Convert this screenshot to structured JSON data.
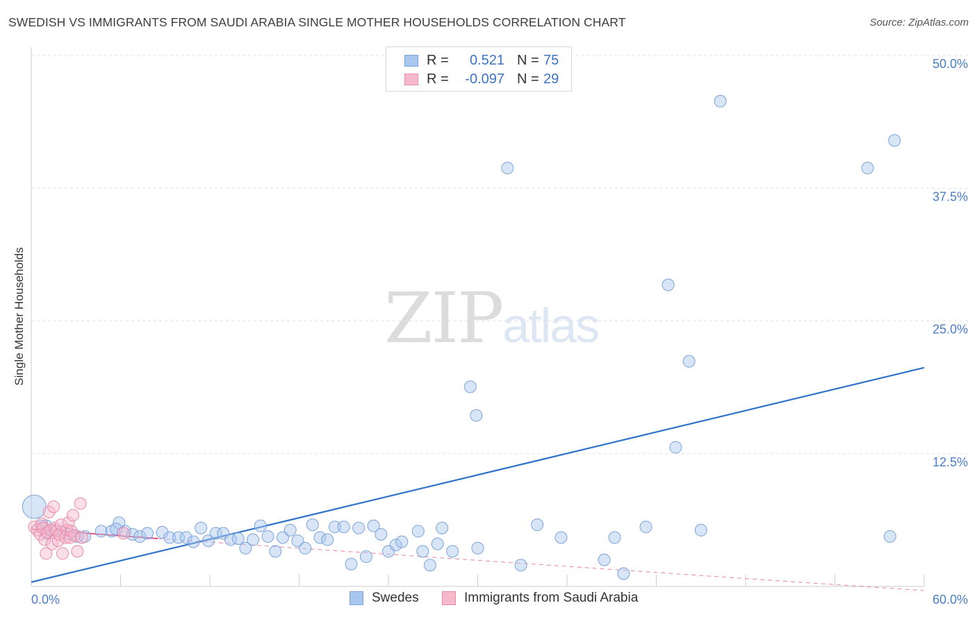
{
  "title": "SWEDISH VS IMMIGRANTS FROM SAUDI ARABIA SINGLE MOTHER HOUSEHOLDS CORRELATION CHART",
  "source": "Source: ZipAtlas.com",
  "watermark": {
    "zip": "ZIP",
    "atlas": "atlas"
  },
  "colors": {
    "blue_fill": "#a9c6ee",
    "blue_stroke": "#7aa3dc",
    "blue_line": "#2f72cc",
    "pink_fill": "#f6b9cc",
    "pink_stroke": "#ea8aa9",
    "pink_line": "#e0507e",
    "grid": "#e2e2e2",
    "axis": "#cccccc",
    "tick_text": "#4a7ec9"
  },
  "legend": {
    "rows": [
      {
        "r_label": "R =",
        "r_value": "0.521",
        "n_label": "N =",
        "n_value": "75"
      },
      {
        "r_label": "R =",
        "r_value": "-0.097",
        "n_label": "N =",
        "n_value": "29"
      }
    ]
  },
  "bottom_legend": {
    "swedes": "Swedes",
    "saudi": "Immigrants from Saudi Arabia"
  },
  "chart_data": {
    "type": "scatter",
    "title": "SWEDISH VS IMMIGRANTS FROM SAUDI ARABIA SINGLE MOTHER HOUSEHOLDS CORRELATION CHART",
    "xlabel": "",
    "ylabel": "Single Mother Households",
    "xlim": [
      0,
      60
    ],
    "ylim": [
      0,
      50
    ],
    "x_tick_labels": [
      "0.0%",
      "60.0%"
    ],
    "y_ticks": [
      12.5,
      25.0,
      37.5,
      50.0
    ],
    "y_tick_labels": [
      "12.5%",
      "25.0%",
      "37.5%",
      "50.0%"
    ],
    "grid": true,
    "series": [
      {
        "name": "Swedes",
        "color": "#a9c6ee",
        "points": [
          [
            0.2,
            7.5
          ],
          [
            0.7,
            5.7
          ],
          [
            1.0,
            5.0
          ],
          [
            1.5,
            5.3
          ],
          [
            2.0,
            5.1
          ],
          [
            2.6,
            4.9
          ],
          [
            3.1,
            4.7
          ],
          [
            3.6,
            4.7
          ],
          [
            4.7,
            5.2
          ],
          [
            5.4,
            5.2
          ],
          [
            5.9,
            6.0
          ],
          [
            6.3,
            5.2
          ],
          [
            6.8,
            4.9
          ],
          [
            7.3,
            4.7
          ],
          [
            7.8,
            5.0
          ],
          [
            8.8,
            5.1
          ],
          [
            9.3,
            4.6
          ],
          [
            9.9,
            4.6
          ],
          [
            10.4,
            4.6
          ],
          [
            10.9,
            4.2
          ],
          [
            11.4,
            5.5
          ],
          [
            11.9,
            4.3
          ],
          [
            12.4,
            5.0
          ],
          [
            12.9,
            5.0
          ],
          [
            13.4,
            4.4
          ],
          [
            13.9,
            4.5
          ],
          [
            14.4,
            3.6
          ],
          [
            14.9,
            4.4
          ],
          [
            15.4,
            5.7
          ],
          [
            15.9,
            4.7
          ],
          [
            16.4,
            3.3
          ],
          [
            16.9,
            4.6
          ],
          [
            17.4,
            5.3
          ],
          [
            17.9,
            4.3
          ],
          [
            18.4,
            3.6
          ],
          [
            18.9,
            5.8
          ],
          [
            19.4,
            4.6
          ],
          [
            19.9,
            4.4
          ],
          [
            20.4,
            5.6
          ],
          [
            21.0,
            5.6
          ],
          [
            21.5,
            2.1
          ],
          [
            22.0,
            5.5
          ],
          [
            22.5,
            2.8
          ],
          [
            23.0,
            5.7
          ],
          [
            23.5,
            4.9
          ],
          [
            24.0,
            3.3
          ],
          [
            24.5,
            3.9
          ],
          [
            24.9,
            4.2
          ],
          [
            26.0,
            5.2
          ],
          [
            26.3,
            3.3
          ],
          [
            26.8,
            2.0
          ],
          [
            27.3,
            4.0
          ],
          [
            27.6,
            5.5
          ],
          [
            28.3,
            3.3
          ],
          [
            29.5,
            18.8
          ],
          [
            29.9,
            16.1
          ],
          [
            30.0,
            3.6
          ],
          [
            32.0,
            39.4
          ],
          [
            32.9,
            2.0
          ],
          [
            34.0,
            5.8
          ],
          [
            35.6,
            4.6
          ],
          [
            38.5,
            2.5
          ],
          [
            39.2,
            4.6
          ],
          [
            39.8,
            1.2
          ],
          [
            41.3,
            5.6
          ],
          [
            42.8,
            28.4
          ],
          [
            43.3,
            13.1
          ],
          [
            44.2,
            21.2
          ],
          [
            45.0,
            5.3
          ],
          [
            46.3,
            45.7
          ],
          [
            56.2,
            39.4
          ],
          [
            57.7,
            4.7
          ],
          [
            58.0,
            42.0
          ],
          [
            1.0,
            5.7
          ],
          [
            5.7,
            5.4
          ]
        ]
      },
      {
        "name": "Immigrants from Saudi Arabia",
        "color": "#f6b9cc",
        "points": [
          [
            0.2,
            5.6
          ],
          [
            0.4,
            5.3
          ],
          [
            0.6,
            4.9
          ],
          [
            0.7,
            5.9
          ],
          [
            0.8,
            5.5
          ],
          [
            0.9,
            4.4
          ],
          [
            1.0,
            3.1
          ],
          [
            1.1,
            5.1
          ],
          [
            1.2,
            7.0
          ],
          [
            1.3,
            5.3
          ],
          [
            1.4,
            4.0
          ],
          [
            1.5,
            7.5
          ],
          [
            1.6,
            5.5
          ],
          [
            1.7,
            5.2
          ],
          [
            1.8,
            4.3
          ],
          [
            1.9,
            4.9
          ],
          [
            2.0,
            5.8
          ],
          [
            2.1,
            3.1
          ],
          [
            2.3,
            4.6
          ],
          [
            2.4,
            5.3
          ],
          [
            2.5,
            6.0
          ],
          [
            2.6,
            4.6
          ],
          [
            2.7,
            5.2
          ],
          [
            2.8,
            6.7
          ],
          [
            2.9,
            4.8
          ],
          [
            3.1,
            3.3
          ],
          [
            3.3,
            7.8
          ],
          [
            3.4,
            4.6
          ],
          [
            6.2,
            5.0
          ]
        ]
      }
    ],
    "trend_lines": [
      {
        "series": "Swedes",
        "x": [
          0,
          60
        ],
        "y": [
          0.4,
          20.6
        ],
        "style": "solid"
      },
      {
        "series": "Immigrants from Saudi Arabia",
        "x_solid": [
          0,
          8.5
        ],
        "y_solid": [
          5.4,
          4.5
        ],
        "x_dashed": [
          8.5,
          60
        ],
        "y_dashed": [
          4.5,
          -0.4
        ],
        "style": "solid-then-dashed"
      }
    ]
  }
}
